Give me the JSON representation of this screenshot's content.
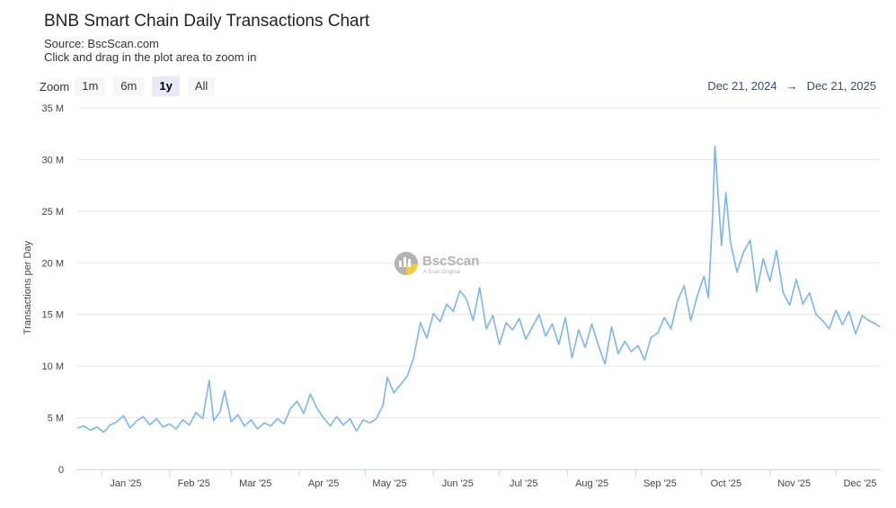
{
  "header": {
    "title": "BNB Smart Chain Daily Transactions Chart",
    "source": "Source: BscScan.com",
    "hint": "Click and drag in the plot area to zoom in"
  },
  "zoom": {
    "label": "Zoom",
    "buttons": [
      {
        "label": "1m",
        "active": false
      },
      {
        "label": "6m",
        "active": false
      },
      {
        "label": "1y",
        "active": true
      },
      {
        "label": "All",
        "active": false
      }
    ]
  },
  "range": {
    "from": "Dec 21, 2024",
    "arrow": "→",
    "to": "Dec 21, 2025"
  },
  "watermark": {
    "name": "BscScan",
    "tagline": "A Scan Original"
  },
  "colors": {
    "line": "#7cb5ec",
    "grid": "#e6e6e6",
    "range_text": "#334d77"
  },
  "chart_data": {
    "type": "line",
    "title": "BNB Smart Chain Daily Transactions Chart",
    "ylabel": "Transactions per Day",
    "ylim": [
      0,
      35
    ],
    "yunit": "M",
    "y_ticks": [
      0,
      5,
      10,
      15,
      20,
      25,
      30,
      35
    ],
    "y_tick_labels": [
      "0",
      "5 M",
      "10 M",
      "15 M",
      "20 M",
      "25 M",
      "30 M",
      "35 M"
    ],
    "x_ticks": [
      {
        "date": "2025-01-01",
        "label": "Jan '25"
      },
      {
        "date": "2025-02-01",
        "label": "Feb '25"
      },
      {
        "date": "2025-03-01",
        "label": "Mar '25"
      },
      {
        "date": "2025-04-01",
        "label": "Apr '25"
      },
      {
        "date": "2025-05-01",
        "label": "May '25"
      },
      {
        "date": "2025-06-01",
        "label": "Jun '25"
      },
      {
        "date": "2025-07-01",
        "label": "Jul '25"
      },
      {
        "date": "2025-08-01",
        "label": "Aug '25"
      },
      {
        "date": "2025-09-01",
        "label": "Sep '25"
      },
      {
        "date": "2025-10-01",
        "label": "Oct '25"
      },
      {
        "date": "2025-11-01",
        "label": "Nov '25"
      },
      {
        "date": "2025-12-01",
        "label": "Dec '25"
      }
    ],
    "xlim": [
      "2024-12-21",
      "2025-12-21"
    ],
    "grid": true,
    "legend": "none",
    "series": [
      {
        "values": [
          [
            "2024-12-21",
            4.0
          ],
          [
            "2024-12-24",
            4.2
          ],
          [
            "2024-12-27",
            3.8
          ],
          [
            "2024-12-30",
            4.1
          ],
          [
            "2025-01-02",
            3.6
          ],
          [
            "2025-01-05",
            4.3
          ],
          [
            "2025-01-08",
            4.6
          ],
          [
            "2025-01-11",
            5.2
          ],
          [
            "2025-01-14",
            4.0
          ],
          [
            "2025-01-17",
            4.7
          ],
          [
            "2025-01-20",
            5.1
          ],
          [
            "2025-01-23",
            4.3
          ],
          [
            "2025-01-26",
            4.9
          ],
          [
            "2025-01-29",
            4.1
          ],
          [
            "2025-02-01",
            4.4
          ],
          [
            "2025-02-04",
            3.9
          ],
          [
            "2025-02-07",
            4.8
          ],
          [
            "2025-02-10",
            4.3
          ],
          [
            "2025-02-13",
            5.5
          ],
          [
            "2025-02-16",
            4.9
          ],
          [
            "2025-02-19",
            8.6
          ],
          [
            "2025-02-21",
            4.7
          ],
          [
            "2025-02-24",
            5.6
          ],
          [
            "2025-02-26",
            7.6
          ],
          [
            "2025-03-01",
            4.6
          ],
          [
            "2025-03-04",
            5.3
          ],
          [
            "2025-03-07",
            4.2
          ],
          [
            "2025-03-10",
            4.8
          ],
          [
            "2025-03-13",
            3.9
          ],
          [
            "2025-03-16",
            4.5
          ],
          [
            "2025-03-19",
            4.2
          ],
          [
            "2025-03-22",
            4.9
          ],
          [
            "2025-03-25",
            4.4
          ],
          [
            "2025-03-28",
            5.9
          ],
          [
            "2025-03-31",
            6.6
          ],
          [
            "2025-04-03",
            5.4
          ],
          [
            "2025-04-06",
            7.3
          ],
          [
            "2025-04-09",
            5.9
          ],
          [
            "2025-04-12",
            5.0
          ],
          [
            "2025-04-15",
            4.2
          ],
          [
            "2025-04-18",
            5.1
          ],
          [
            "2025-04-21",
            4.3
          ],
          [
            "2025-04-24",
            4.9
          ],
          [
            "2025-04-27",
            3.7
          ],
          [
            "2025-04-30",
            4.8
          ],
          [
            "2025-05-03",
            4.5
          ],
          [
            "2025-05-06",
            4.9
          ],
          [
            "2025-05-09",
            6.2
          ],
          [
            "2025-05-11",
            8.9
          ],
          [
            "2025-05-14",
            7.4
          ],
          [
            "2025-05-17",
            8.2
          ],
          [
            "2025-05-20",
            9.0
          ],
          [
            "2025-05-23",
            10.8
          ],
          [
            "2025-05-26",
            14.2
          ],
          [
            "2025-05-29",
            12.7
          ],
          [
            "2025-06-01",
            15.1
          ],
          [
            "2025-06-04",
            14.3
          ],
          [
            "2025-06-07",
            16.0
          ],
          [
            "2025-06-10",
            15.3
          ],
          [
            "2025-06-13",
            17.3
          ],
          [
            "2025-06-16",
            16.5
          ],
          [
            "2025-06-19",
            14.4
          ],
          [
            "2025-06-22",
            17.6
          ],
          [
            "2025-06-25",
            13.6
          ],
          [
            "2025-06-28",
            14.9
          ],
          [
            "2025-07-01",
            12.1
          ],
          [
            "2025-07-04",
            14.2
          ],
          [
            "2025-07-07",
            13.5
          ],
          [
            "2025-07-10",
            14.6
          ],
          [
            "2025-07-13",
            12.6
          ],
          [
            "2025-07-16",
            13.8
          ],
          [
            "2025-07-19",
            15.0
          ],
          [
            "2025-07-22",
            12.9
          ],
          [
            "2025-07-25",
            14.1
          ],
          [
            "2025-07-28",
            12.1
          ],
          [
            "2025-07-31",
            14.7
          ],
          [
            "2025-08-03",
            10.8
          ],
          [
            "2025-08-06",
            13.5
          ],
          [
            "2025-08-09",
            11.8
          ],
          [
            "2025-08-12",
            14.1
          ],
          [
            "2025-08-15",
            12.0
          ],
          [
            "2025-08-18",
            10.2
          ],
          [
            "2025-08-21",
            13.8
          ],
          [
            "2025-08-24",
            11.2
          ],
          [
            "2025-08-27",
            12.4
          ],
          [
            "2025-08-30",
            11.4
          ],
          [
            "2025-09-02",
            12.0
          ],
          [
            "2025-09-05",
            10.6
          ],
          [
            "2025-09-08",
            12.8
          ],
          [
            "2025-09-11",
            13.2
          ],
          [
            "2025-09-14",
            14.7
          ],
          [
            "2025-09-17",
            13.6
          ],
          [
            "2025-09-20",
            16.3
          ],
          [
            "2025-09-23",
            17.8
          ],
          [
            "2025-09-26",
            14.4
          ],
          [
            "2025-09-29",
            16.8
          ],
          [
            "2025-10-02",
            18.7
          ],
          [
            "2025-10-04",
            16.6
          ],
          [
            "2025-10-06",
            24.8
          ],
          [
            "2025-10-07",
            31.3
          ],
          [
            "2025-10-09",
            24.8
          ],
          [
            "2025-10-10",
            21.7
          ],
          [
            "2025-10-12",
            26.8
          ],
          [
            "2025-10-14",
            22.1
          ],
          [
            "2025-10-17",
            19.1
          ],
          [
            "2025-10-20",
            21.0
          ],
          [
            "2025-10-23",
            22.2
          ],
          [
            "2025-10-26",
            17.2
          ],
          [
            "2025-10-29",
            20.4
          ],
          [
            "2025-11-01",
            18.2
          ],
          [
            "2025-11-04",
            21.2
          ],
          [
            "2025-11-07",
            17.1
          ],
          [
            "2025-11-10",
            15.9
          ],
          [
            "2025-11-13",
            18.4
          ],
          [
            "2025-11-16",
            16.0
          ],
          [
            "2025-11-19",
            17.1
          ],
          [
            "2025-11-22",
            15.0
          ],
          [
            "2025-11-25",
            14.4
          ],
          [
            "2025-11-28",
            13.6
          ],
          [
            "2025-12-01",
            15.4
          ],
          [
            "2025-12-04",
            14.0
          ],
          [
            "2025-12-07",
            15.3
          ],
          [
            "2025-12-10",
            13.1
          ],
          [
            "2025-12-13",
            14.9
          ],
          [
            "2025-12-16",
            14.4
          ],
          [
            "2025-12-19",
            14.1
          ],
          [
            "2025-12-21",
            13.8
          ]
        ]
      }
    ]
  }
}
